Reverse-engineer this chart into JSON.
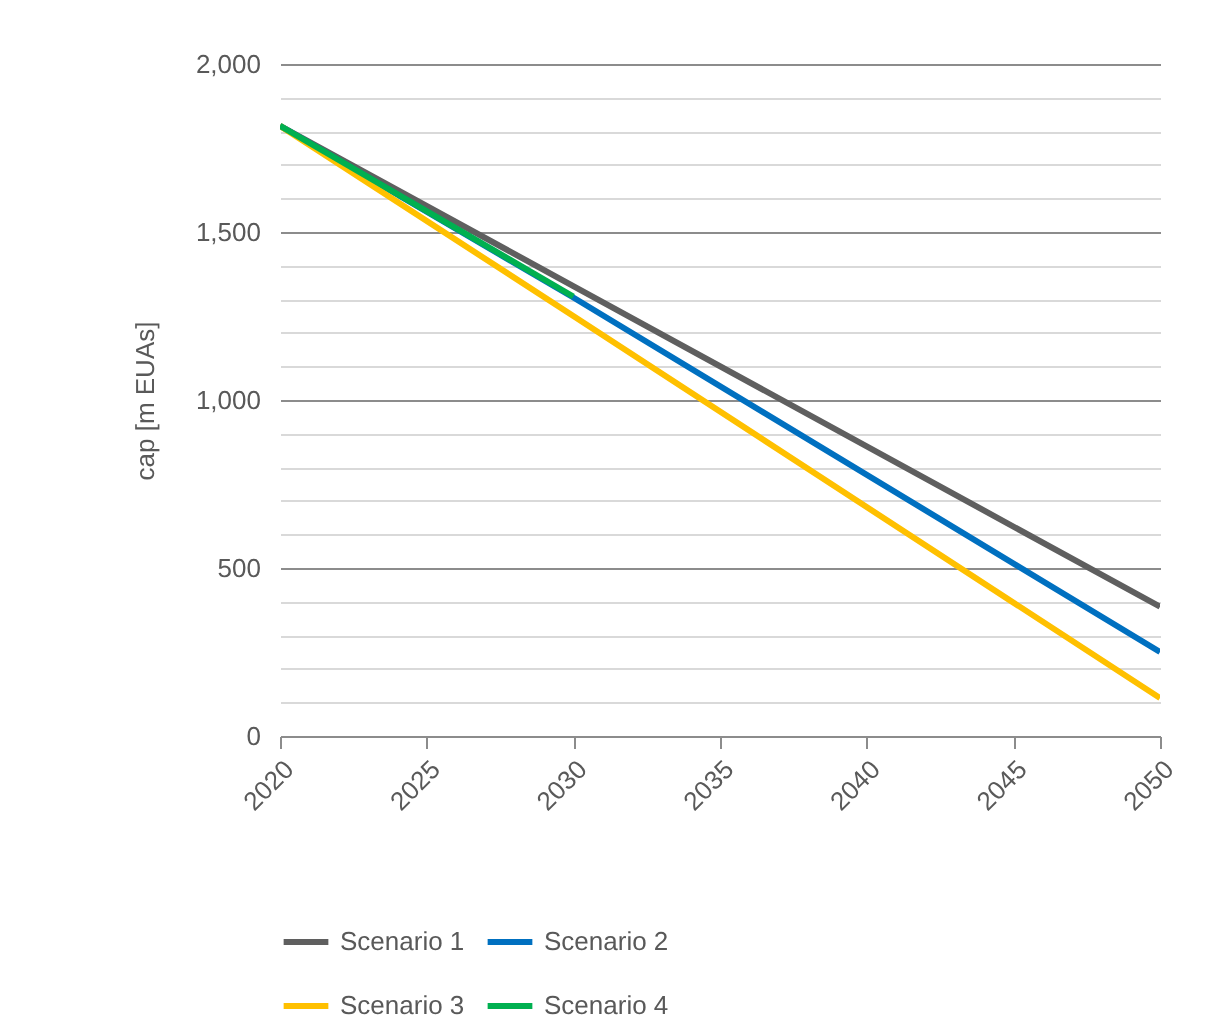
{
  "chart_data": {
    "type": "line",
    "ylabel": "cap [m EUAs]",
    "x": [
      2020,
      2030,
      2050
    ],
    "series": [
      {
        "name": "Scenario 1",
        "color": "#5f5f5f",
        "values": [
          1816,
          1339,
          385
        ]
      },
      {
        "name": "Scenario 2",
        "color": "#0070c0",
        "values": [
          1816,
          1305,
          250
        ]
      },
      {
        "name": "Scenario 3",
        "color": "#ffc000",
        "values": [
          1816,
          1250,
          113
        ]
      },
      {
        "name": "Scenario 4",
        "color": "#00b050",
        "x": [
          2020,
          2030
        ],
        "values": [
          1816,
          1308
        ]
      }
    ],
    "xlim": [
      2020,
      2050
    ],
    "xticks": [
      2020,
      2025,
      2030,
      2035,
      2040,
      2045,
      2050
    ],
    "ylim": [
      0,
      2000
    ],
    "yticks": [
      0,
      {
        "value": 100,
        "label": null
      },
      {
        "value": 200,
        "label": null
      },
      {
        "value": 300,
        "label": null
      },
      {
        "value": 400,
        "label": null
      },
      {
        "value": 500,
        "label": "500"
      },
      {
        "value": 600,
        "label": null
      },
      {
        "value": 700,
        "label": null
      },
      {
        "value": 800,
        "label": null
      },
      {
        "value": 900,
        "label": null
      },
      {
        "value": 1000,
        "label": "1,000"
      },
      {
        "value": 1100,
        "label": null
      },
      {
        "value": 1200,
        "label": null
      },
      {
        "value": 1300,
        "label": null
      },
      {
        "value": 1400,
        "label": null
      },
      {
        "value": 1500,
        "label": "1,500"
      },
      {
        "value": 1600,
        "label": null
      },
      {
        "value": 1700,
        "label": null
      },
      {
        "value": 1800,
        "label": null
      },
      {
        "value": 1900,
        "label": null
      },
      {
        "value": 2000,
        "label": "2,000"
      }
    ],
    "grid": "y",
    "legend": "bottom",
    "marker": "none",
    "line_style": "solid"
  }
}
